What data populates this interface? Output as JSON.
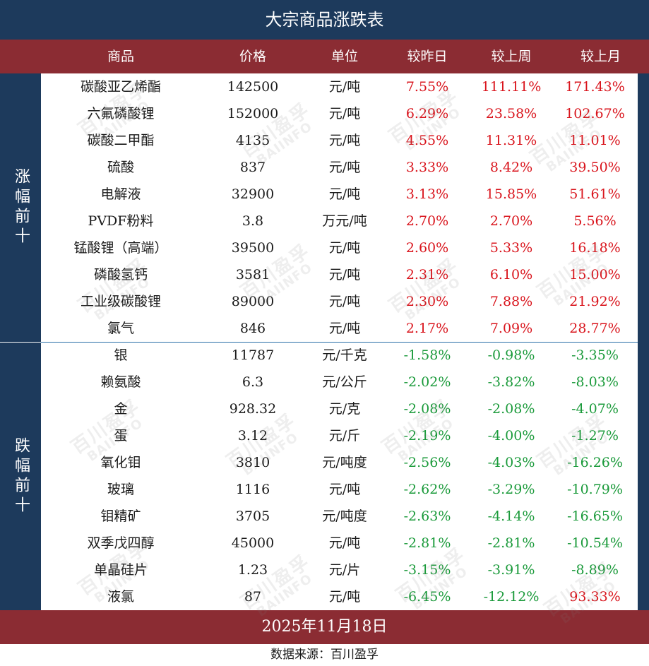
{
  "title": "大宗商品涨跌表",
  "headers": [
    "商品",
    "价格",
    "单位",
    "较昨日",
    "较上周",
    "较上月"
  ],
  "group_up_label": "涨幅前十",
  "group_down_label": "跌幅前十",
  "colors": {
    "navy": "#1d3a5c",
    "maroon": "#8b2c33",
    "up": "#d9141c",
    "down": "#1a9a3a"
  },
  "rows": [
    {
      "name": "碳酸亚乙烯酯",
      "price": "142500",
      "unit": "元/吨",
      "day": "7.55%",
      "week": "111.11%",
      "month": "171.43%"
    },
    {
      "name": "六氟磷酸锂",
      "price": "152000",
      "unit": "元/吨",
      "day": "6.29%",
      "week": "23.58%",
      "month": "102.67%"
    },
    {
      "name": "碳酸二甲酯",
      "price": "4135",
      "unit": "元/吨",
      "day": "4.55%",
      "week": "11.31%",
      "month": "11.01%"
    },
    {
      "name": "硫酸",
      "price": "837",
      "unit": "元/吨",
      "day": "3.33%",
      "week": "8.42%",
      "month": "39.50%"
    },
    {
      "name": "电解液",
      "price": "32900",
      "unit": "元/吨",
      "day": "3.13%",
      "week": "15.85%",
      "month": "51.61%"
    },
    {
      "name": "PVDF粉料",
      "price": "3.8",
      "unit": "万元/吨",
      "day": "2.70%",
      "week": "2.70%",
      "month": "5.56%"
    },
    {
      "name": "锰酸锂（高端）",
      "price": "39500",
      "unit": "元/吨",
      "day": "2.60%",
      "week": "5.33%",
      "month": "16.18%"
    },
    {
      "name": "磷酸氢钙",
      "price": "3581",
      "unit": "元/吨",
      "day": "2.31%",
      "week": "6.10%",
      "month": "15.00%"
    },
    {
      "name": "工业级碳酸锂",
      "price": "89000",
      "unit": "元/吨",
      "day": "2.30%",
      "week": "7.88%",
      "month": "21.92%"
    },
    {
      "name": "氯气",
      "price": "846",
      "unit": "元/吨",
      "day": "2.17%",
      "week": "7.09%",
      "month": "28.77%"
    },
    {
      "name": "银",
      "price": "11787",
      "unit": "元/千克",
      "day": "-1.58%",
      "week": "-0.98%",
      "month": "-3.35%"
    },
    {
      "name": "赖氨酸",
      "price": "6.3",
      "unit": "元/公斤",
      "day": "-2.02%",
      "week": "-3.82%",
      "month": "-8.03%"
    },
    {
      "name": "金",
      "price": "928.32",
      "unit": "元/克",
      "day": "-2.08%",
      "week": "-2.08%",
      "month": "-4.07%"
    },
    {
      "name": "蛋",
      "price": "3.12",
      "unit": "元/斤",
      "day": "-2.19%",
      "week": "-4.00%",
      "month": "-1.27%"
    },
    {
      "name": "氧化钼",
      "price": "3810",
      "unit": "元/吨度",
      "day": "-2.56%",
      "week": "-4.03%",
      "month": "-16.26%"
    },
    {
      "name": "玻璃",
      "price": "1116",
      "unit": "元/吨",
      "day": "-2.62%",
      "week": "-3.29%",
      "month": "-10.79%"
    },
    {
      "name": "钼精矿",
      "price": "3705",
      "unit": "元/吨度",
      "day": "-2.63%",
      "week": "-4.14%",
      "month": "-16.65%"
    },
    {
      "name": "双季戊四醇",
      "price": "45000",
      "unit": "元/吨",
      "day": "-2.81%",
      "week": "-2.81%",
      "month": "-10.54%"
    },
    {
      "name": "单晶硅片",
      "price": "1.23",
      "unit": "元/片",
      "day": "-3.15%",
      "week": "-3.91%",
      "month": "-8.89%"
    },
    {
      "name": "液氯",
      "price": "87",
      "unit": "元/吨",
      "day": "-6.45%",
      "week": "-12.12%",
      "month": "93.33%"
    }
  ],
  "date": "2025年11月18日",
  "source": "数据来源：百川盈孚",
  "watermark_cn": "百川盈孚",
  "watermark_en": "BAIINFO"
}
